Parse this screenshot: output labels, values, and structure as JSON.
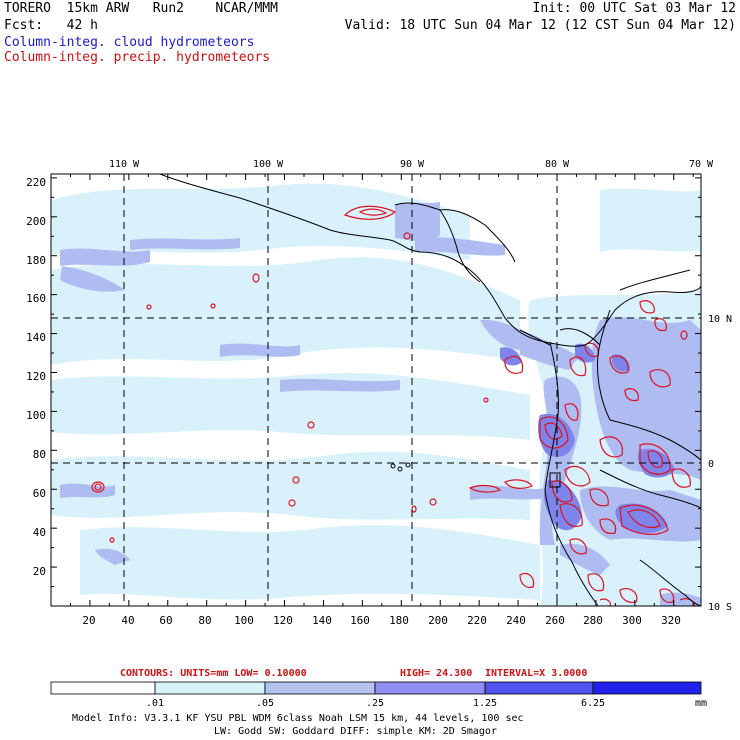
{
  "header": {
    "line1_left": "TORERO  15km ARW   Run2    NCAR/MMM",
    "line1_right": "Init: 00 UTC Sat 03 Mar 12",
    "line2_left": "Fcst:   42 h",
    "line2_right": "Valid: 18 UTC Sun 04 Mar 12 (12 CST Sun 04 Mar 12)",
    "legend_cloud": "Column-integ. cloud hydrometeors",
    "legend_precip": "Column-integ. precip. hydrometeors"
  },
  "axes": {
    "top_labels": [
      "110 W",
      "100 W",
      "90 W",
      "80 W",
      "70 W"
    ],
    "right_labels": [
      "10 N",
      "0",
      "10 S"
    ],
    "y_ticks": [
      "220",
      "200",
      "180",
      "160",
      "140",
      "120",
      "100",
      "80",
      "60",
      "40",
      "20"
    ],
    "x_ticks": [
      "20",
      "40",
      "60",
      "80",
      "100",
      "120",
      "140",
      "160",
      "180",
      "200",
      "220",
      "240",
      "260",
      "280",
      "300",
      "320"
    ]
  },
  "contours": {
    "units_label": "CONTOURS:  UNITS=mm  LOW= 0.10000",
    "high_label": "HIGH=  24.300",
    "interval_label": "INTERVAL=X  3.0000"
  },
  "colorbar": {
    "labels": [
      ".01",
      ".05",
      ".25",
      "1.25",
      "6.25"
    ],
    "unit": "mm",
    "colors": [
      "#ffffff",
      "#d6f2fb",
      "#b4c2f2",
      "#8e8ff0",
      "#5252ee",
      "#2121ec"
    ]
  },
  "model_info": {
    "line1": "Model Info: V3.3.1    KF     YSU PBL  WDM 6class  Noah LSM  15 km,   44 levels,   100 sec",
    "line2": "LW: Godd SW: Goddard DIFF: simple KM: 2D Smagor"
  },
  "colors": {
    "cloud_light": "#d9f1fb",
    "cloud_mid": "#aebcf1",
    "cloud_dark": "#7e84ea",
    "precip": "#dd1122"
  }
}
